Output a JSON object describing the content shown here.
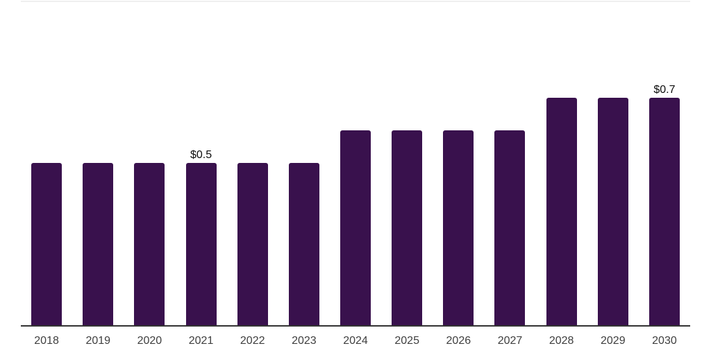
{
  "chart_data": {
    "type": "bar",
    "title": "",
    "xlabel": "",
    "ylabel": "",
    "categories": [
      "2018",
      "2019",
      "2020",
      "2021",
      "2022",
      "2023",
      "2024",
      "2025",
      "2026",
      "2027",
      "2028",
      "2029",
      "2030"
    ],
    "values": [
      0.5,
      0.5,
      0.5,
      0.5,
      0.5,
      0.5,
      0.6,
      0.6,
      0.6,
      0.6,
      0.7,
      0.7,
      0.7
    ],
    "data_labels": [
      "",
      "",
      "",
      "$0.5",
      "",
      "",
      "",
      "",
      "",
      "",
      "",
      "",
      "$0.7"
    ],
    "ylim": [
      0,
      0.75
    ],
    "grid": false,
    "legend": false,
    "layout_hints": {
      "bar_alignment": "bottom",
      "labels_shown_only_for": [
        "2021",
        "2030"
      ]
    },
    "colors": {
      "bar": "#39114D",
      "axis_line": "#333333",
      "tick_label": "#3F3F3F",
      "data_label": "#0D0D0D",
      "top_divider": "#EFEFEF"
    }
  }
}
